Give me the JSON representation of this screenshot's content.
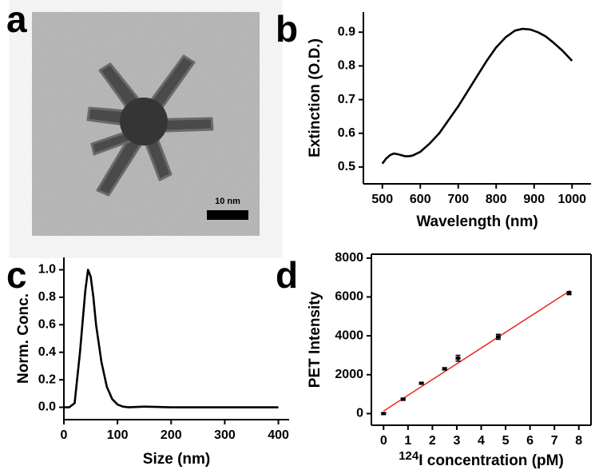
{
  "image": {
    "panel_label": "a",
    "scale_bar": "10 nm"
  },
  "chart_data": [
    {
      "type": "line",
      "panel_label": "b",
      "xlabel": "Wavelength (nm)",
      "ylabel": "Extinction (O.D.)",
      "x": [
        500,
        510,
        520,
        530,
        540,
        550,
        560,
        570,
        580,
        600,
        625,
        650,
        675,
        700,
        725,
        750,
        775,
        800,
        825,
        850,
        870,
        890,
        910,
        930,
        950,
        975,
        1000
      ],
      "series": [
        {
          "color": "#000000",
          "values": [
            0.51,
            0.525,
            0.535,
            0.54,
            0.538,
            0.535,
            0.532,
            0.532,
            0.534,
            0.545,
            0.57,
            0.6,
            0.64,
            0.68,
            0.725,
            0.77,
            0.815,
            0.855,
            0.885,
            0.905,
            0.91,
            0.908,
            0.9,
            0.888,
            0.87,
            0.845,
            0.815
          ]
        }
      ],
      "xlim": [
        450,
        1050
      ],
      "ylim": [
        0.45,
        0.96
      ],
      "xticks": [
        500,
        600,
        700,
        800,
        900,
        1000
      ],
      "yticks": [
        0.5,
        0.6,
        0.7,
        0.8,
        0.9
      ],
      "box": false
    },
    {
      "type": "line",
      "panel_label": "c",
      "xlabel": "Size (nm)",
      "ylabel": "Norm. Conc.",
      "x": [
        0,
        10,
        20,
        30,
        40,
        45,
        50,
        55,
        60,
        70,
        80,
        90,
        100,
        110,
        120,
        150,
        200,
        300,
        400
      ],
      "series": [
        {
          "color": "#000000",
          "values": [
            0,
            0,
            0.03,
            0.4,
            0.85,
            1.0,
            0.95,
            0.8,
            0.6,
            0.33,
            0.15,
            0.06,
            0.02,
            0.005,
            0,
            0.005,
            0,
            0,
            0
          ]
        }
      ],
      "xlim": [
        0,
        420
      ],
      "ylim": [
        -0.09,
        1.09
      ],
      "xticks": [
        0,
        100,
        200,
        300,
        400
      ],
      "yticks": [
        {
          "value": 0,
          "label": "0.0"
        },
        0.2,
        0.4,
        0.6,
        0.8,
        {
          "value": 1,
          "label": "1.0"
        }
      ],
      "box": false
    },
    {
      "type": "scatter",
      "panel_label": "d",
      "xlabel_superscript": "124",
      "xlabel": "I concentration (pM)",
      "ylabel": "PET Intensity",
      "series": [
        {
          "color": "#000000",
          "x": [
            0,
            0.8,
            1.55,
            2.5,
            3.05,
            4.7,
            7.6
          ],
          "values": [
            0,
            740,
            1560,
            2300,
            2850,
            3950,
            6200
          ],
          "errors": [
            40,
            60,
            50,
            60,
            150,
            130,
            80
          ]
        }
      ],
      "fit": {
        "color": "#e8281e",
        "x": [
          0,
          7.65
        ],
        "values": [
          130,
          6330
        ]
      },
      "xlim": [
        -0.5,
        8.5
      ],
      "ylim": [
        -600,
        8200
      ],
      "xticks": [
        0,
        1,
        2,
        3,
        4,
        5,
        6,
        7,
        8
      ],
      "yticks": [
        0,
        2000,
        4000,
        6000,
        8000
      ],
      "box": true
    }
  ]
}
